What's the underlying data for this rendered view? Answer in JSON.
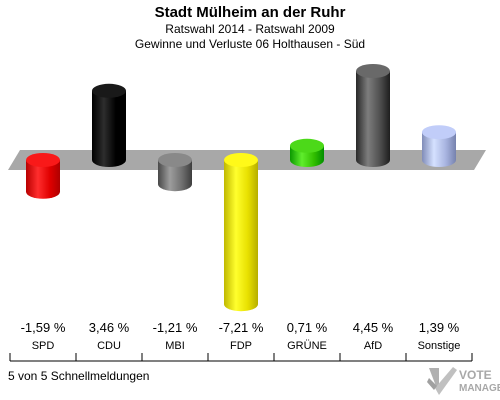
{
  "header": {
    "title": "Stadt Mülheim an der Ruhr",
    "subtitle1": "Ratswahl 2014 - Ratswahl 2009",
    "subtitle2": "Gewinne und Verluste 06 Holthausen - Süd"
  },
  "footer": {
    "note": "5 von 5 Schnellmeldungen"
  },
  "logo": {
    "line1": "VOTE",
    "line2": "MANAGER",
    "icon": "checkmark-icon"
  },
  "chart_data": {
    "type": "bar",
    "title": "Stadt Mülheim an der Ruhr",
    "subtitle": "Ratswahl 2014 - Ratswahl 2009 / Gewinne und Verluste 06 Holthausen - Süd",
    "categories": [
      "SPD",
      "CDU",
      "MBI",
      "FDP",
      "GRÜNE",
      "AfD",
      "Sonstige"
    ],
    "values": [
      -1.59,
      3.46,
      -1.21,
      -7.21,
      0.71,
      4.45,
      1.39
    ],
    "value_labels": [
      "-1,59 %",
      "3,46 %",
      "-1,21 %",
      "-7,21 %",
      "0,71 %",
      "4,45 %",
      "1,39 %"
    ],
    "colors": [
      "#e00000",
      "#000000",
      "#707070",
      "#e8e000",
      "#33c000",
      "#505050",
      "#a8b4e0"
    ],
    "ylim": [
      -7.5,
      4.5
    ],
    "grid": false,
    "legend": "none"
  }
}
